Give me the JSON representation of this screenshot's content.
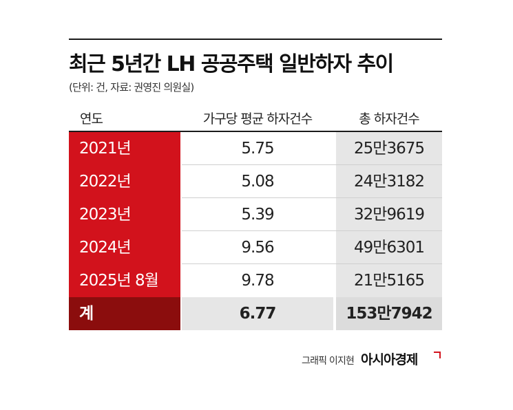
{
  "title": "최근 5년간 LH 공공주택 일반하자 추이",
  "subtitle": "(단위: 건, 자료: 권영진 의원실)",
  "table": {
    "headers": {
      "year": "연도",
      "avg": "가구당 평균 하자건수",
      "total": "총 하자건수"
    },
    "rows": [
      {
        "year": "2021년",
        "avg": "5.75",
        "total": "25만3675"
      },
      {
        "year": "2022년",
        "avg": "5.08",
        "total": "24만3182"
      },
      {
        "year": "2023년",
        "avg": "5.39",
        "total": "32만9619"
      },
      {
        "year": "2024년",
        "avg": "9.56",
        "total": "49만6301"
      },
      {
        "year": "2025년 8월",
        "avg": "9.78",
        "total": "21만5165"
      }
    ],
    "total_row": {
      "year": "계",
      "avg": "6.77",
      "total": "153만7942"
    }
  },
  "footer": {
    "credit": "그래픽 이지현",
    "logo": "아시아경제"
  },
  "colors": {
    "accent_red": "#d2121c",
    "dark_red": "#8b0d0d",
    "gray_cell": "#e6e6e6"
  }
}
